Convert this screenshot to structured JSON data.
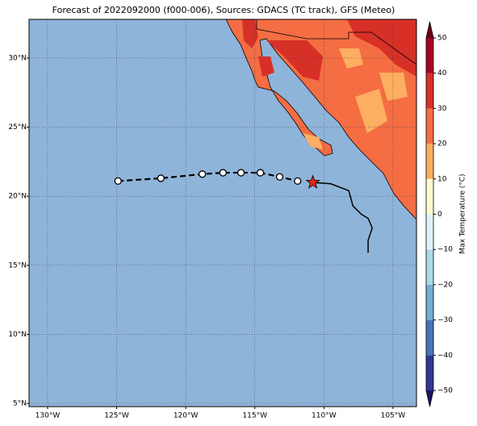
{
  "chart_data": {
    "type": "track-map",
    "title": "Forecast of 2022092000 (f000-006), Sources: GDACS (TC track), GFS (Meteo)",
    "xlim": [
      -131.34,
      -103.3
    ],
    "ylim": [
      4.77,
      32.8
    ],
    "xticks": [
      {
        "value": -130,
        "label": "130°W"
      },
      {
        "value": -125,
        "label": "125°W"
      },
      {
        "value": -120,
        "label": "120°W"
      },
      {
        "value": -115,
        "label": "115°W"
      },
      {
        "value": -110,
        "label": "110°W"
      },
      {
        "value": -105,
        "label": "105°W"
      }
    ],
    "yticks": [
      {
        "value": 5,
        "label": "5°N"
      },
      {
        "value": 10,
        "label": "10°N"
      },
      {
        "value": 15,
        "label": "15°N"
      },
      {
        "value": 20,
        "label": "20°N"
      },
      {
        "value": 25,
        "label": "25°N"
      },
      {
        "value": 30,
        "label": "30°N"
      }
    ],
    "grid": true,
    "ocean_color": "#8fb4d9",
    "land_color": "#f46d43",
    "tracks": [
      {
        "style": "dashed",
        "marker": "circle",
        "color": "#000000",
        "x": [
          -124.9,
          -121.8,
          -118.8,
          -117.3,
          -116.0,
          -114.6,
          -113.2,
          -111.9
        ],
        "y": [
          21.1,
          21.3,
          21.6,
          21.7,
          21.7,
          21.7,
          21.4,
          21.1
        ]
      },
      {
        "style": "solid",
        "color": "#000000",
        "x": [
          -110.8,
          -109.5,
          -108.2,
          -107.9,
          -107.3,
          -106.8,
          -106.5,
          -106.8,
          -106.8
        ],
        "y": [
          21.0,
          20.9,
          20.4,
          19.3,
          18.7,
          18.4,
          17.7,
          16.8,
          15.9
        ]
      }
    ],
    "current": {
      "x": -110.8,
      "y": 21.0,
      "color": "#e8251c"
    },
    "colorbar": {
      "label": "Max Temperature (°C)",
      "lim": [
        -50,
        50
      ],
      "ticks": [
        {
          "value": -50,
          "label": "−50"
        },
        {
          "value": -40,
          "label": "−40"
        },
        {
          "value": -30,
          "label": "−30"
        },
        {
          "value": -20,
          "label": "−20"
        },
        {
          "value": -10,
          "label": "−10"
        },
        0,
        10,
        20,
        30,
        40,
        50
      ],
      "colors": [
        "#313695",
        "#4575b4",
        "#74add1",
        "#abd9e9",
        "#e0f3f8",
        "#fffbd0",
        "#fdae61",
        "#f46d43",
        "#d73027",
        "#a50026"
      ],
      "under_color": "#1a1660",
      "over_color": "#6b0018"
    }
  }
}
